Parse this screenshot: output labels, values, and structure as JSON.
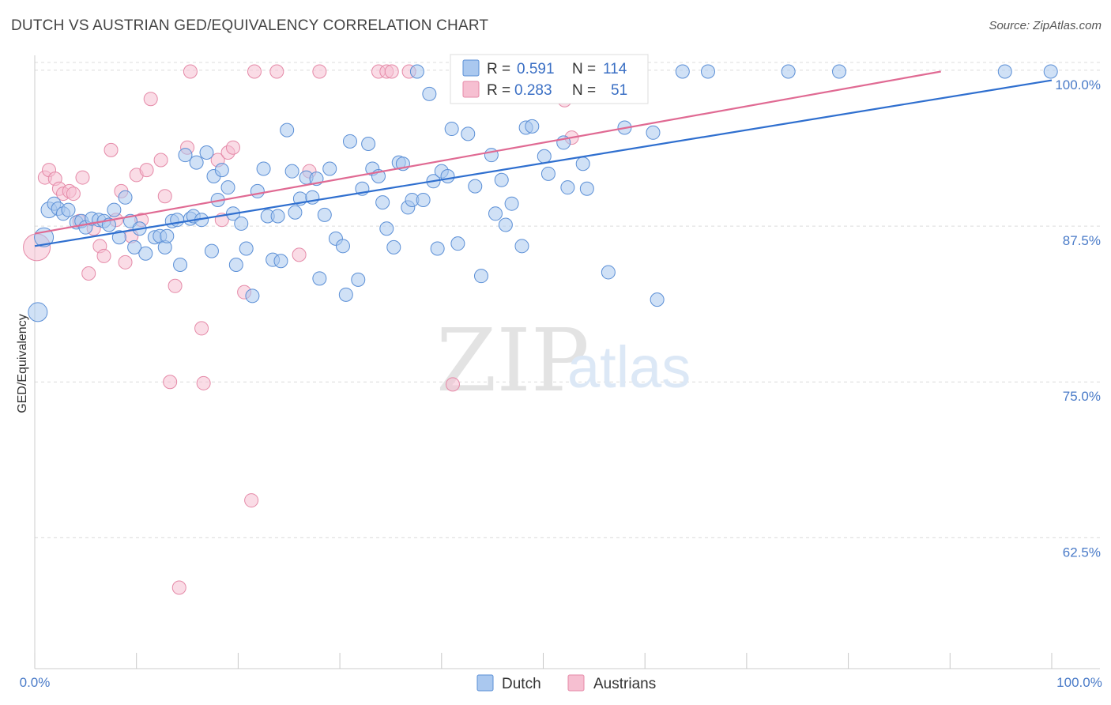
{
  "title": "DUTCH VS AUSTRIAN GED/EQUIVALENCY CORRELATION CHART",
  "source": "Source: ZipAtlas.com",
  "watermark": {
    "zip": "ZIP",
    "atlas": "atlas"
  },
  "colors": {
    "dutch_fill": "#aac8ef",
    "dutch_stroke": "#5b8fd6",
    "dutch_line": "#2f6fcf",
    "austrian_fill": "#f6bfd1",
    "austrian_stroke": "#e58aa8",
    "austrian_line": "#e06a93",
    "grid": "#dcdcdc",
    "tick_label": "#4a7bc8"
  },
  "legend_top": {
    "rows": [
      {
        "r_label": "R =",
        "r_value": "0.591",
        "n_label": "N =",
        "n_value": "114"
      },
      {
        "r_label": "R =",
        "r_value": "0.283",
        "n_label": "N =",
        "n_value": "51"
      }
    ]
  },
  "legend_bottom": {
    "dutch": "Dutch",
    "austrians": "Austrians"
  },
  "chart_data": {
    "type": "scatter",
    "title": "DUTCH VS AUSTRIAN GED/EQUIVALENCY CORRELATION CHART",
    "xlabel": "",
    "ylabel": "GED/Equivalency",
    "xlim": [
      0,
      100
    ],
    "ylim": [
      52,
      101.2
    ],
    "x_tick_labels": [
      "0.0%",
      "100.0%"
    ],
    "y_ticks": [
      {
        "value": 100,
        "label": "100.0%"
      },
      {
        "value": 87.5,
        "label": "87.5%"
      },
      {
        "value": 75,
        "label": "75.0%"
      },
      {
        "value": 62.5,
        "label": "62.5%"
      }
    ],
    "series": [
      {
        "name": "Dutch",
        "r": 0.591,
        "n": 114,
        "trend": {
          "x": [
            0,
            100
          ],
          "y": [
            85.9,
            99.2
          ]
        },
        "points": [
          [
            0.3,
            80.6,
            3
          ],
          [
            0.9,
            86.6,
            3
          ],
          [
            1.4,
            88.8,
            2
          ],
          [
            1.9,
            89.3,
            1
          ],
          [
            2.3,
            88.9,
            1
          ],
          [
            2.8,
            88.5,
            1
          ],
          [
            3.3,
            88.8,
            1
          ],
          [
            4.1,
            87.8,
            1
          ],
          [
            4.6,
            87.9,
            1
          ],
          [
            5.0,
            87.4,
            1
          ],
          [
            5.6,
            88.1,
            1
          ],
          [
            6.3,
            88.0,
            1
          ],
          [
            6.8,
            87.9,
            1
          ],
          [
            7.3,
            87.6,
            1
          ],
          [
            7.8,
            88.8,
            1
          ],
          [
            8.3,
            86.6,
            1
          ],
          [
            8.9,
            89.8,
            1
          ],
          [
            9.4,
            87.9,
            1
          ],
          [
            9.8,
            85.8,
            1
          ],
          [
            10.3,
            87.3,
            1
          ],
          [
            10.9,
            85.3,
            1
          ],
          [
            11.8,
            86.6,
            1
          ],
          [
            12.3,
            86.7,
            1
          ],
          [
            12.8,
            85.8,
            1
          ],
          [
            13.0,
            86.7,
            1
          ],
          [
            13.5,
            87.9,
            1
          ],
          [
            14.0,
            88.0,
            1
          ],
          [
            14.3,
            84.4,
            1
          ],
          [
            14.8,
            93.2,
            1
          ],
          [
            15.3,
            88.1,
            1
          ],
          [
            15.6,
            88.3,
            1
          ],
          [
            15.9,
            92.6,
            1
          ],
          [
            16.4,
            88.0,
            1
          ],
          [
            16.9,
            93.4,
            1
          ],
          [
            17.4,
            85.5,
            1
          ],
          [
            17.6,
            91.5,
            1
          ],
          [
            18.0,
            89.6,
            1
          ],
          [
            18.4,
            92.0,
            1
          ],
          [
            19.0,
            90.6,
            1
          ],
          [
            19.5,
            88.5,
            1
          ],
          [
            19.8,
            84.4,
            1
          ],
          [
            20.3,
            87.7,
            1
          ],
          [
            20.8,
            85.7,
            1
          ],
          [
            21.4,
            81.9,
            1
          ],
          [
            21.9,
            90.3,
            1
          ],
          [
            22.5,
            92.1,
            1
          ],
          [
            22.9,
            88.3,
            1
          ],
          [
            23.4,
            84.8,
            1
          ],
          [
            23.9,
            88.3,
            1
          ],
          [
            24.2,
            84.7,
            1
          ],
          [
            24.8,
            95.2,
            1
          ],
          [
            25.3,
            91.9,
            1
          ],
          [
            25.6,
            88.6,
            1
          ],
          [
            26.1,
            89.7,
            1
          ],
          [
            26.7,
            91.4,
            1
          ],
          [
            27.3,
            89.8,
            1
          ],
          [
            27.7,
            91.3,
            1
          ],
          [
            28.0,
            83.3,
            1
          ],
          [
            28.5,
            88.4,
            1
          ],
          [
            29.0,
            92.1,
            1
          ],
          [
            29.6,
            86.5,
            1
          ],
          [
            30.3,
            85.9,
            1
          ],
          [
            30.6,
            82.0,
            1
          ],
          [
            31.0,
            94.3,
            1
          ],
          [
            31.8,
            83.2,
            1
          ],
          [
            32.2,
            90.5,
            1
          ],
          [
            32.8,
            94.1,
            1
          ],
          [
            33.2,
            92.1,
            1
          ],
          [
            33.8,
            91.5,
            1
          ],
          [
            34.2,
            89.4,
            1
          ],
          [
            34.6,
            87.3,
            1
          ],
          [
            35.3,
            85.8,
            1
          ],
          [
            35.8,
            92.6,
            1
          ],
          [
            36.2,
            92.5,
            1
          ],
          [
            36.7,
            89.0,
            1
          ],
          [
            37.1,
            89.6,
            1
          ],
          [
            37.6,
            99.9,
            1
          ],
          [
            38.2,
            89.6,
            1
          ],
          [
            38.8,
            98.1,
            1
          ],
          [
            39.2,
            91.1,
            1
          ],
          [
            39.6,
            85.7,
            1
          ],
          [
            40.0,
            91.9,
            1
          ],
          [
            40.6,
            91.5,
            1
          ],
          [
            41.0,
            95.3,
            1
          ],
          [
            41.6,
            86.1,
            1
          ],
          [
            42.6,
            94.9,
            1
          ],
          [
            43.3,
            90.7,
            1
          ],
          [
            43.9,
            83.5,
            1
          ],
          [
            44.9,
            93.2,
            1
          ],
          [
            45.3,
            88.5,
            1
          ],
          [
            45.9,
            91.2,
            1
          ],
          [
            46.3,
            87.6,
            1
          ],
          [
            46.9,
            89.3,
            1
          ],
          [
            47.9,
            85.9,
            1
          ],
          [
            48.3,
            95.4,
            1
          ],
          [
            48.9,
            95.5,
            1
          ],
          [
            50.1,
            93.1,
            1
          ],
          [
            50.5,
            91.7,
            1
          ],
          [
            52.0,
            94.2,
            1
          ],
          [
            52.4,
            90.6,
            1
          ],
          [
            53.1,
            99.0,
            1
          ],
          [
            53.9,
            92.5,
            1
          ],
          [
            54.3,
            90.5,
            1
          ],
          [
            56.4,
            83.8,
            1
          ],
          [
            58.0,
            95.4,
            1
          ],
          [
            58.3,
            99.9,
            1
          ],
          [
            60.8,
            95.0,
            1
          ],
          [
            61.2,
            81.6,
            1
          ],
          [
            63.7,
            99.9,
            1
          ],
          [
            66.2,
            99.9,
            1
          ],
          [
            74.1,
            99.9,
            1
          ],
          [
            79.1,
            99.9,
            1
          ],
          [
            95.4,
            99.9,
            1
          ],
          [
            99.9,
            99.9,
            1
          ]
        ]
      },
      {
        "name": "Austrians",
        "r": 0.283,
        "n": 51,
        "trend": {
          "x": [
            0,
            89.1
          ],
          "y": [
            86.9,
            99.9
          ]
        },
        "points": [
          [
            0.2,
            85.8,
            4
          ],
          [
            1.0,
            91.4,
            1
          ],
          [
            1.4,
            92.0,
            1
          ],
          [
            2.0,
            91.3,
            1
          ],
          [
            2.4,
            90.5,
            1
          ],
          [
            2.8,
            90.1,
            1
          ],
          [
            3.4,
            90.3,
            1
          ],
          [
            3.8,
            90.1,
            1
          ],
          [
            4.4,
            87.9,
            1
          ],
          [
            4.7,
            91.4,
            1
          ],
          [
            5.3,
            83.7,
            1
          ],
          [
            5.8,
            87.3,
            1
          ],
          [
            6.4,
            85.9,
            1
          ],
          [
            6.8,
            85.1,
            1
          ],
          [
            7.5,
            93.6,
            1
          ],
          [
            8.0,
            88.0,
            1
          ],
          [
            8.5,
            90.3,
            1
          ],
          [
            8.9,
            84.6,
            1
          ],
          [
            9.5,
            86.7,
            1
          ],
          [
            10.0,
            91.6,
            1
          ],
          [
            10.5,
            88.0,
            1
          ],
          [
            11.0,
            92.0,
            1
          ],
          [
            11.4,
            97.7,
            1
          ],
          [
            12.4,
            92.8,
            1
          ],
          [
            12.8,
            89.9,
            1
          ],
          [
            13.3,
            75.0,
            1
          ],
          [
            13.8,
            82.7,
            1
          ],
          [
            14.2,
            58.5,
            1
          ],
          [
            15.0,
            93.8,
            1
          ],
          [
            15.3,
            99.9,
            1
          ],
          [
            16.4,
            79.3,
            1
          ],
          [
            16.6,
            74.9,
            1
          ],
          [
            18.0,
            92.8,
            1
          ],
          [
            18.4,
            88.0,
            1
          ],
          [
            19.0,
            93.4,
            1
          ],
          [
            19.5,
            93.8,
            1
          ],
          [
            20.6,
            82.2,
            1
          ],
          [
            21.3,
            65.5,
            1
          ],
          [
            21.6,
            99.9,
            1
          ],
          [
            23.8,
            99.9,
            1
          ],
          [
            26.0,
            85.2,
            1
          ],
          [
            27.0,
            91.9,
            1
          ],
          [
            28.0,
            99.9,
            1
          ],
          [
            33.8,
            99.9,
            1
          ],
          [
            34.6,
            99.9,
            1
          ],
          [
            35.1,
            99.9,
            1
          ],
          [
            36.8,
            99.9,
            1
          ],
          [
            41.1,
            74.8,
            1
          ],
          [
            47.0,
            99.9,
            1
          ],
          [
            52.1,
            97.6,
            1
          ],
          [
            52.8,
            94.6,
            1
          ]
        ]
      }
    ],
    "legend_position": "top-center"
  }
}
